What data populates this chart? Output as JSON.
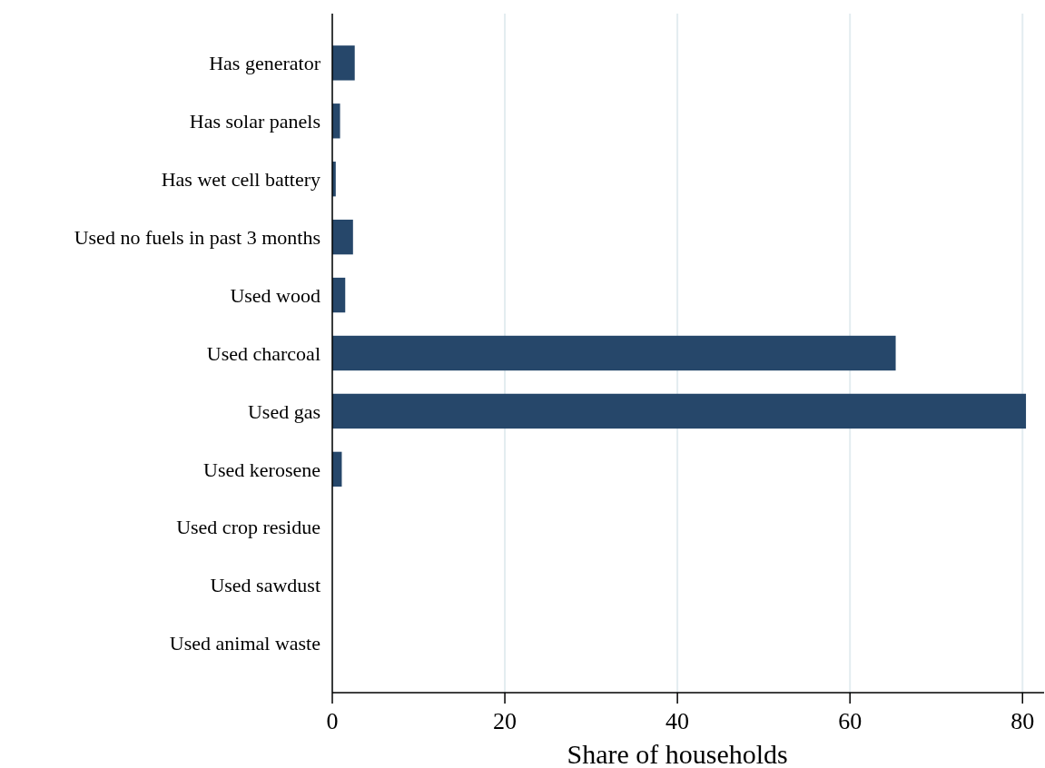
{
  "chart_data": {
    "type": "bar",
    "orientation": "horizontal",
    "xlabel": "Share of households",
    "categories": [
      "Has generator",
      "Has solar panels",
      "Has wet cell battery",
      "Used no fuels in past 3 months",
      "Used wood",
      "Used charcoal",
      "Used gas",
      "Used kerosene",
      "Used crop residue",
      "Used sawdust",
      "Used animal waste"
    ],
    "values": [
      2.6,
      0.9,
      0.4,
      2.4,
      1.5,
      65.3,
      80.4,
      1.1,
      0,
      0,
      0
    ],
    "color": "#26476a",
    "xlim": [
      0,
      82.5
    ],
    "xticks": [
      0,
      20,
      40,
      60,
      80
    ],
    "grid": "x"
  }
}
